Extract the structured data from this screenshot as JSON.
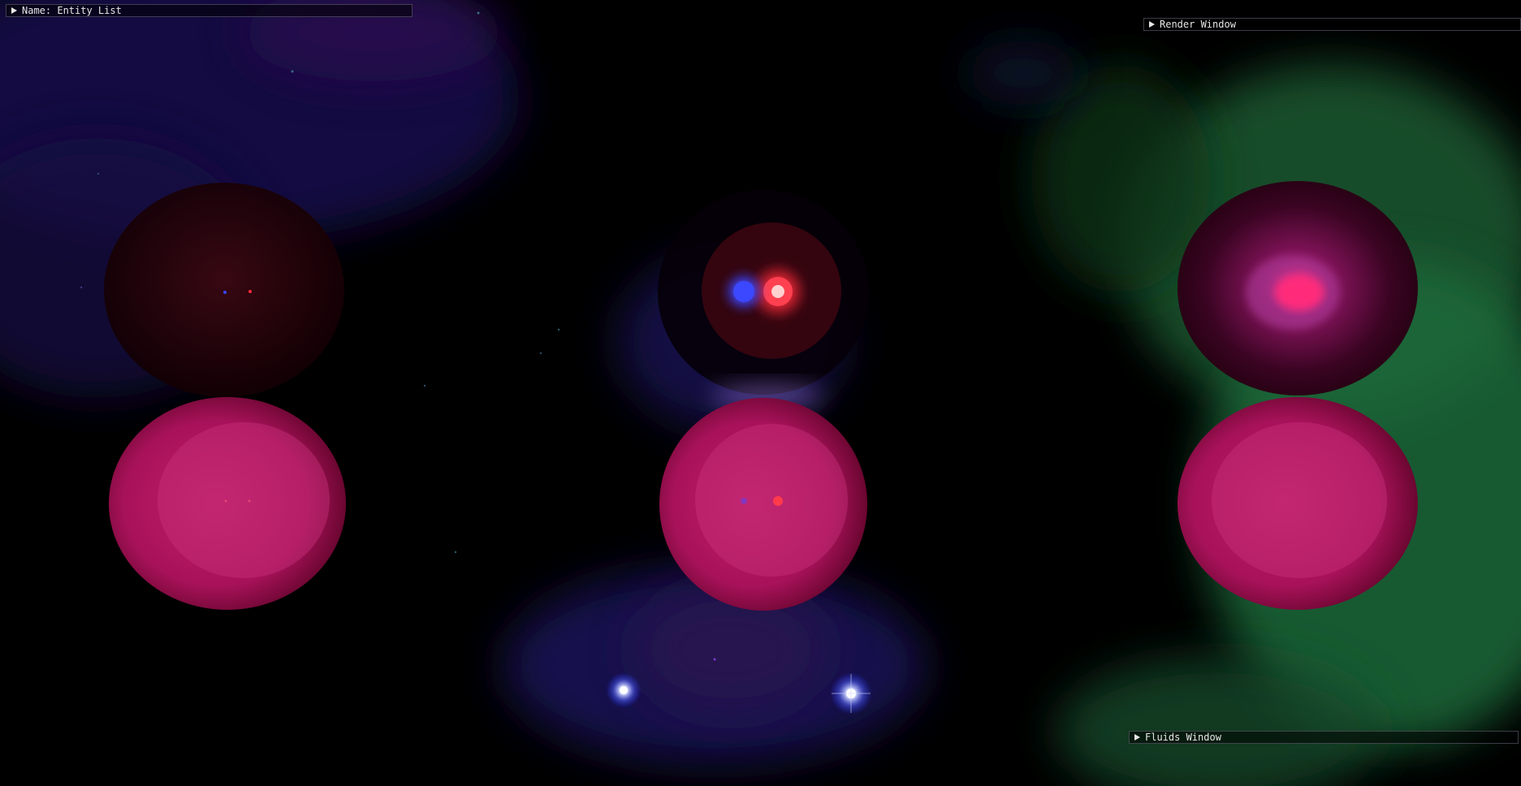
{
  "windows": {
    "entity_list": {
      "title": "Name: Entity List",
      "collapsed": true
    },
    "render_window": {
      "title": "Render Window",
      "collapsed": true
    },
    "fluids_window": {
      "title": "Fluids Window",
      "collapsed": true
    }
  },
  "scene": {
    "description_icon": "collapse-arrow-icon",
    "colors": {
      "background": "#000000",
      "sphere_magenta": "#b0155f",
      "sphere_magenta_light": "#c8307a",
      "light_red": "#ff2a3a",
      "light_blue": "#3a44ff",
      "nebula_blue": "#1a1460",
      "nebula_green": "#1f6a3a",
      "star_white": "#e8ecff"
    }
  }
}
